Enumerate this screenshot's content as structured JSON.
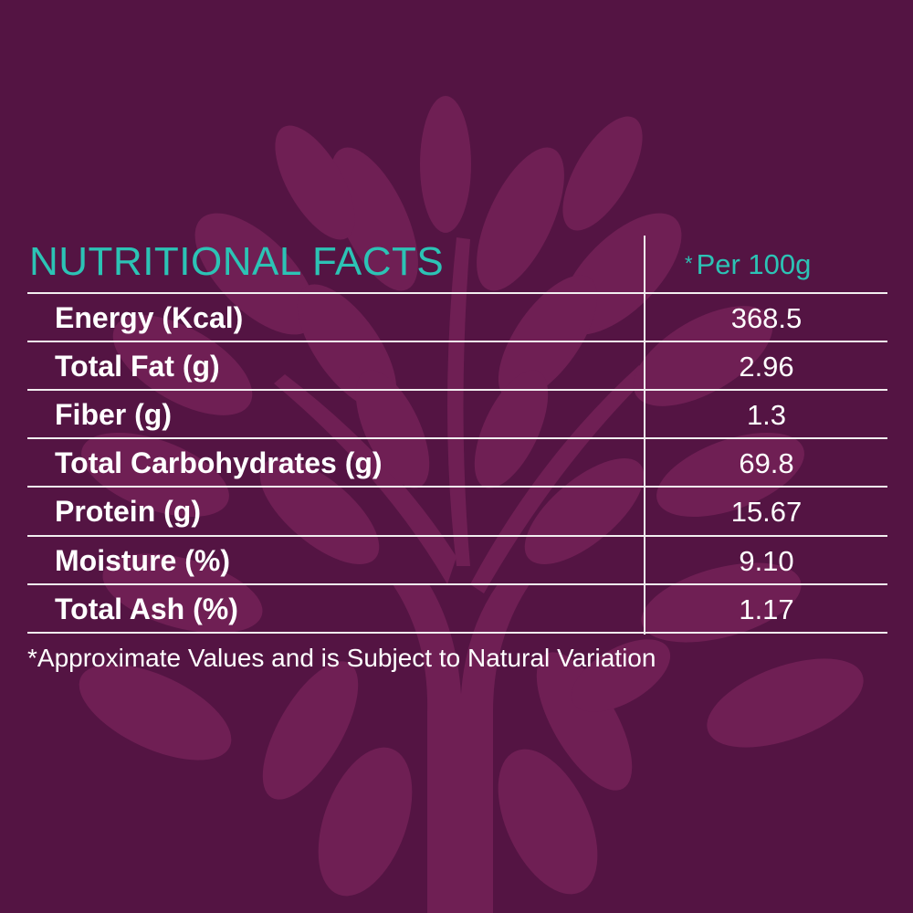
{
  "colors": {
    "background": "#541443",
    "tree": "#6f1f54",
    "accent": "#2cc3b5",
    "text": "#ffffff"
  },
  "background_icon": "tree-icon",
  "title": "NUTRITIONAL FACTS",
  "per_serving": "Per 100g",
  "per_serving_marker": "*",
  "rows": [
    {
      "label": "Energy (Kcal)",
      "value": "368.5"
    },
    {
      "label": "Total Fat (g)",
      "value": "2.96"
    },
    {
      "label": "Fiber (g)",
      "value": "1.3"
    },
    {
      "label": "Total Carbohydrates (g)",
      "value": "69.8"
    },
    {
      "label": "Protein (g)",
      "value": "15.67"
    },
    {
      "label": "Moisture (%)",
      "value": "9.10"
    },
    {
      "label": "Total Ash (%)",
      "value": "1.17"
    }
  ],
  "footnote": "*Approximate Values and is Subject to Natural Variation"
}
